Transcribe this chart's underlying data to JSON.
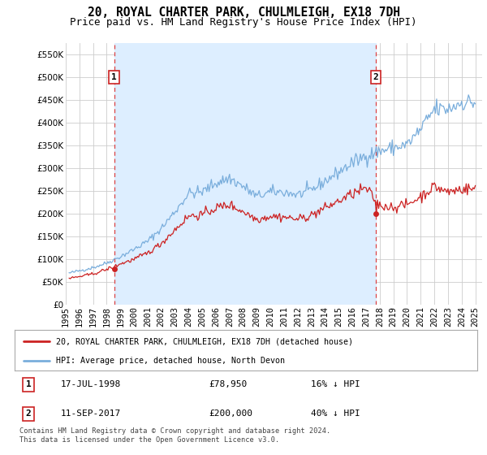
{
  "title": "20, ROYAL CHARTER PARK, CHULMLEIGH, EX18 7DH",
  "subtitle": "Price paid vs. HM Land Registry's House Price Index (HPI)",
  "ylim": [
    0,
    575000
  ],
  "yticks": [
    0,
    50000,
    100000,
    150000,
    200000,
    250000,
    300000,
    350000,
    400000,
    450000,
    500000,
    550000
  ],
  "ytick_labels": [
    "£0",
    "£50K",
    "£100K",
    "£150K",
    "£200K",
    "£250K",
    "£300K",
    "£350K",
    "£400K",
    "£450K",
    "£500K",
    "£550K"
  ],
  "sale1_date": 1998.54,
  "sale1_price": 78950,
  "sale2_date": 2017.71,
  "sale2_price": 200000,
  "sale1_text": "17-JUL-1998",
  "sale1_amount": "£78,950",
  "sale1_hpi": "16% ↓ HPI",
  "sale2_text": "11-SEP-2017",
  "sale2_amount": "£200,000",
  "sale2_hpi": "40% ↓ HPI",
  "legend_line1": "20, ROYAL CHARTER PARK, CHULMLEIGH, EX18 7DH (detached house)",
  "legend_line2": "HPI: Average price, detached house, North Devon",
  "footnote": "Contains HM Land Registry data © Crown copyright and database right 2024.\nThis data is licensed under the Open Government Licence v3.0.",
  "line_color_red": "#cc2222",
  "line_color_blue": "#7aaedc",
  "shade_color": "#ddeeff",
  "bg_color": "#ffffff",
  "grid_color": "#cccccc",
  "title_fontsize": 10.5,
  "subtitle_fontsize": 9,
  "tick_fontsize": 7.5,
  "xlim_left": 1995.25,
  "xlim_right": 2025.5
}
